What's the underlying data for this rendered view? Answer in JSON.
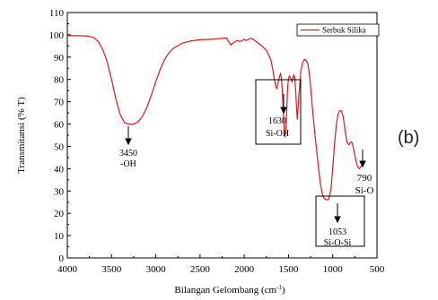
{
  "chart_data": {
    "type": "line",
    "xlabel": "Bilangan Gelombang (cm",
    "xlabel_sup": "-1",
    "xlabel_end": ")",
    "ylabel": "Transmitansi (% T)",
    "xlim": [
      4000,
      500
    ],
    "ylim": [
      0,
      110
    ],
    "x_ticks": [
      4000,
      3500,
      3000,
      2500,
      2000,
      1500,
      1000,
      500
    ],
    "y_ticks": [
      0,
      10,
      20,
      30,
      40,
      50,
      60,
      70,
      80,
      90,
      100,
      110
    ],
    "grid": false,
    "legend_position": "top-right",
    "series": [
      {
        "name": "Serbuk Silika",
        "color": "#e8141e",
        "x": [
          4000,
          3850,
          3780,
          3740,
          3700,
          3650,
          3600,
          3550,
          3500,
          3450,
          3400,
          3350,
          3300,
          3250,
          3200,
          3150,
          3100,
          3050,
          3000,
          2950,
          2900,
          2850,
          2800,
          2700,
          2600,
          2500,
          2400,
          2300,
          2250,
          2200,
          2170,
          2150,
          2120,
          2080,
          2050,
          2020,
          2000,
          1980,
          1960,
          1930,
          1900,
          1850,
          1800,
          1750,
          1700,
          1680,
          1660,
          1640,
          1630,
          1620,
          1600,
          1590,
          1580,
          1570,
          1560,
          1550,
          1540,
          1530,
          1520,
          1510,
          1500,
          1490,
          1480,
          1470,
          1460,
          1450,
          1440,
          1430,
          1420,
          1410,
          1400,
          1380,
          1360,
          1340,
          1320,
          1300,
          1280,
          1260,
          1240,
          1220,
          1200,
          1180,
          1160,
          1140,
          1120,
          1100,
          1080,
          1060,
          1053,
          1040,
          1020,
          1000,
          980,
          960,
          940,
          920,
          900,
          880,
          860,
          840,
          820,
          810,
          800,
          790,
          780,
          770,
          760,
          740,
          720,
          700,
          680,
          660,
          650
        ],
        "y": [
          99.6,
          99.6,
          99.5,
          99.2,
          98.8,
          97,
          93.5,
          88,
          80,
          71,
          64,
          60.5,
          60,
          60,
          61,
          63.5,
          67.5,
          73,
          79,
          84.5,
          89,
          92,
          94,
          96.3,
          97.3,
          97.8,
          98,
          98.2,
          98.4,
          98.6,
          96.5,
          95.5,
          96.5,
          97.5,
          97,
          97.5,
          98,
          97.5,
          97.8,
          98.5,
          98,
          96.5,
          95,
          93,
          89,
          85,
          80,
          76.5,
          76,
          78,
          81.5,
          82.5,
          80.5,
          75,
          67,
          58,
          54,
          57,
          66,
          76,
          80.5,
          81.5,
          81,
          80,
          79,
          80.5,
          82,
          81,
          76,
          68,
          62,
          74,
          84,
          87.5,
          89,
          88.5,
          87,
          81,
          72,
          63,
          55,
          47.5,
          40,
          33.5,
          29,
          26.8,
          26.2,
          26.1,
          26,
          27,
          31,
          40,
          51,
          59.5,
          64.5,
          66,
          65.8,
          63,
          57,
          52,
          50.8,
          51,
          51.8,
          52,
          51.5,
          50,
          48,
          44,
          41,
          40,
          41,
          42,
          42.5
        ]
      }
    ],
    "legend": {
      "label": "Serbuk Silika"
    },
    "annotations": [
      {
        "x": 3450,
        "label_line1": "3450",
        "label_line2": "-OH"
      },
      {
        "x": 1630,
        "label_line1": "1630",
        "label_line2": "Si-OH"
      },
      {
        "x": 1053,
        "label_line1": "1053",
        "label_line2": "Si-O-Si"
      },
      {
        "x": 790,
        "label_line1": "790",
        "label_line2": "Si-O"
      }
    ],
    "panel_label": "(b)"
  }
}
